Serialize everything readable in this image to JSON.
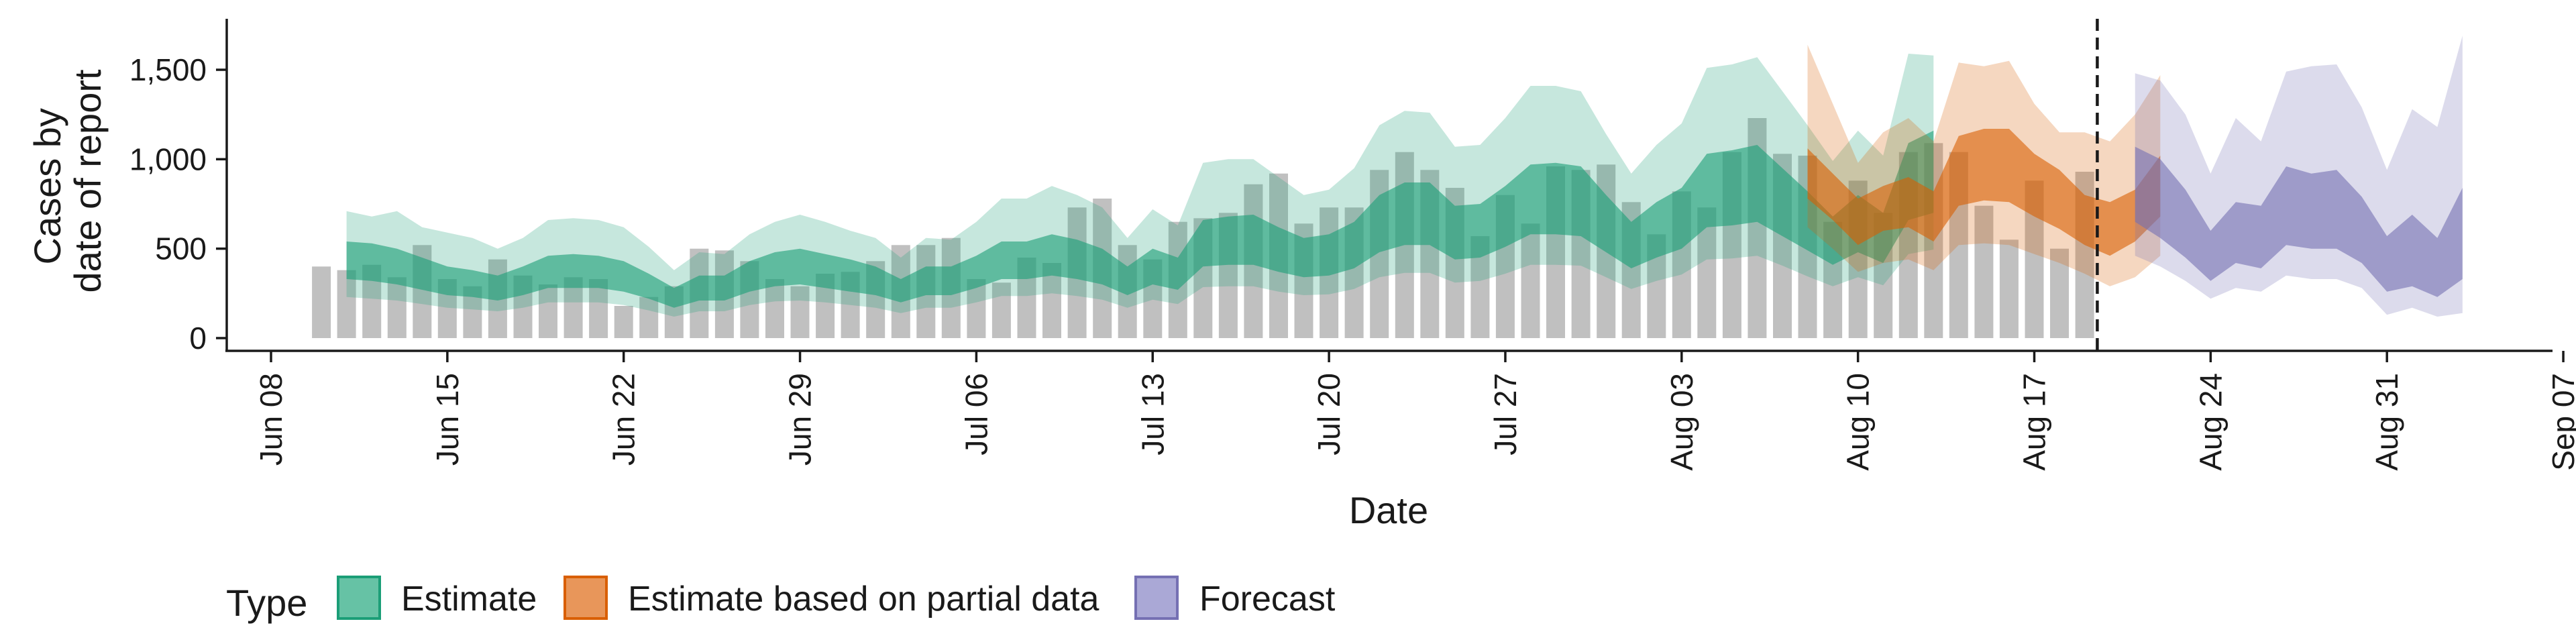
{
  "chart_data": {
    "type": "area",
    "title": "",
    "xlabel": "Date",
    "ylabel": [
      "Cases by",
      "date of report"
    ],
    "x_ticks": [
      "Jun 08",
      "Jun 15",
      "Jun 22",
      "Jun 29",
      "Jul 06",
      "Jul 13",
      "Jul 20",
      "Jul 27",
      "Aug 03",
      "Aug 10",
      "Aug 17",
      "Aug 24",
      "Aug 31",
      "Sep 07"
    ],
    "y_ticks": [
      "0",
      "500",
      "1,000",
      "1,500"
    ],
    "ylim": [
      0,
      1800
    ],
    "xlim": [
      "2020-06-06",
      "2020-09-07"
    ],
    "grid": false,
    "forecast_date": "2020-08-19",
    "legend": {
      "title": "Type",
      "position": "bottom",
      "items": [
        {
          "label": "Estimate",
          "fill": "#66c2a5",
          "stroke": "#1b9e77"
        },
        {
          "label": "Estimate based on partial data",
          "fill": "#e8965a",
          "stroke": "#d95f02"
        },
        {
          "label": "Forecast",
          "fill": "#aaa8d6",
          "stroke": "#7570b3"
        }
      ]
    },
    "colors": {
      "estimate": "#1b9e77",
      "partial": "#d95f02",
      "forecast": "#7570b3",
      "bars": "#bdbdbd"
    },
    "bars": {
      "start": "2020-06-10",
      "values": [
        400,
        380,
        410,
        340,
        520,
        330,
        290,
        440,
        350,
        300,
        340,
        330,
        180,
        230,
        290,
        500,
        490,
        430,
        330,
        290,
        360,
        370,
        430,
        520,
        520,
        560,
        330,
        310,
        450,
        420,
        730,
        780,
        520,
        440,
        650,
        670,
        700,
        860,
        920,
        640,
        730,
        730,
        940,
        1040,
        940,
        840,
        570,
        800,
        640,
        960,
        940,
        970,
        760,
        580,
        820,
        730,
        1040,
        1230,
        1030,
        1020,
        650,
        880,
        700,
        1040,
        1090,
        1040,
        740,
        550,
        880,
        500,
        930
      ]
    },
    "series": [
      {
        "name": "Estimate",
        "start": "2020-06-11",
        "outer_upper": [
          710,
          680,
          710,
          620,
          590,
          560,
          500,
          560,
          660,
          670,
          660,
          620,
          510,
          380,
          480,
          470,
          580,
          650,
          690,
          650,
          600,
          560,
          450,
          560,
          550,
          650,
          780,
          780,
          850,
          800,
          730,
          560,
          720,
          630,
          980,
          1000,
          1000,
          900,
          800,
          830,
          950,
          1190,
          1270,
          1260,
          1070,
          1080,
          1230,
          1410,
          1410,
          1380,
          1140,
          920,
          1080,
          1200,
          1510,
          1530,
          1570,
          1380,
          1190,
          990,
          1160,
          1020,
          1590,
          1580
        ],
        "inner_upper": [
          540,
          530,
          500,
          450,
          400,
          380,
          350,
          400,
          460,
          470,
          460,
          430,
          360,
          280,
          350,
          350,
          430,
          480,
          500,
          470,
          440,
          400,
          330,
          400,
          400,
          460,
          540,
          540,
          580,
          550,
          500,
          400,
          500,
          450,
          660,
          680,
          690,
          620,
          560,
          580,
          650,
          800,
          870,
          870,
          740,
          750,
          850,
          970,
          980,
          960,
          800,
          650,
          760,
          840,
          1030,
          1050,
          1080,
          950,
          820,
          680,
          800,
          700,
          1090,
          1160
        ],
        "inner_lower": [
          330,
          320,
          300,
          270,
          240,
          230,
          210,
          240,
          280,
          280,
          280,
          260,
          220,
          170,
          210,
          210,
          260,
          290,
          300,
          280,
          260,
          240,
          200,
          240,
          240,
          280,
          330,
          330,
          350,
          330,
          300,
          240,
          300,
          270,
          400,
          410,
          410,
          370,
          340,
          350,
          390,
          480,
          520,
          520,
          440,
          450,
          510,
          580,
          580,
          570,
          480,
          390,
          450,
          500,
          620,
          630,
          650,
          570,
          490,
          410,
          480,
          420,
          660,
          700
        ],
        "outer_lower": [
          230,
          220,
          210,
          190,
          170,
          160,
          150,
          170,
          200,
          200,
          200,
          185,
          155,
          120,
          150,
          150,
          185,
          205,
          210,
          200,
          185,
          170,
          140,
          170,
          170,
          200,
          235,
          235,
          250,
          235,
          215,
          170,
          215,
          190,
          285,
          290,
          290,
          260,
          240,
          245,
          275,
          340,
          365,
          365,
          310,
          320,
          360,
          410,
          410,
          405,
          340,
          275,
          320,
          355,
          440,
          445,
          460,
          405,
          345,
          290,
          340,
          295,
          470,
          495
        ]
      },
      {
        "name": "Estimate based on partial data",
        "start": "2020-08-08",
        "outer_upper": [
          1640,
          1310,
          980,
          1150,
          1230,
          1100,
          1540,
          1520,
          1550,
          1310,
          1150,
          1150,
          1100,
          1250,
          1470
        ],
        "inner_upper": [
          1060,
          920,
          780,
          850,
          900,
          820,
          1130,
          1170,
          1170,
          1030,
          940,
          800,
          760,
          830,
          1020
        ],
        "inner_lower": [
          780,
          660,
          520,
          600,
          620,
          540,
          740,
          770,
          760,
          680,
          610,
          520,
          460,
          540,
          680
        ],
        "outer_lower": [
          620,
          500,
          370,
          420,
          440,
          380,
          520,
          530,
          520,
          470,
          420,
          360,
          290,
          340,
          460
        ]
      },
      {
        "name": "Forecast",
        "start": "2020-08-21",
        "outer_upper": [
          1480,
          1440,
          1250,
          920,
          1230,
          1100,
          1490,
          1520,
          1530,
          1290,
          940,
          1280,
          1180,
          1690
        ],
        "inner_upper": [
          1070,
          1000,
          830,
          600,
          760,
          740,
          960,
          920,
          940,
          790,
          570,
          690,
          560,
          840
        ],
        "inner_lower": [
          650,
          560,
          450,
          320,
          420,
          390,
          520,
          500,
          500,
          420,
          260,
          290,
          230,
          330
        ],
        "outer_lower": [
          460,
          400,
          320,
          220,
          280,
          260,
          350,
          330,
          330,
          280,
          130,
          170,
          120,
          140
        ]
      }
    ]
  }
}
